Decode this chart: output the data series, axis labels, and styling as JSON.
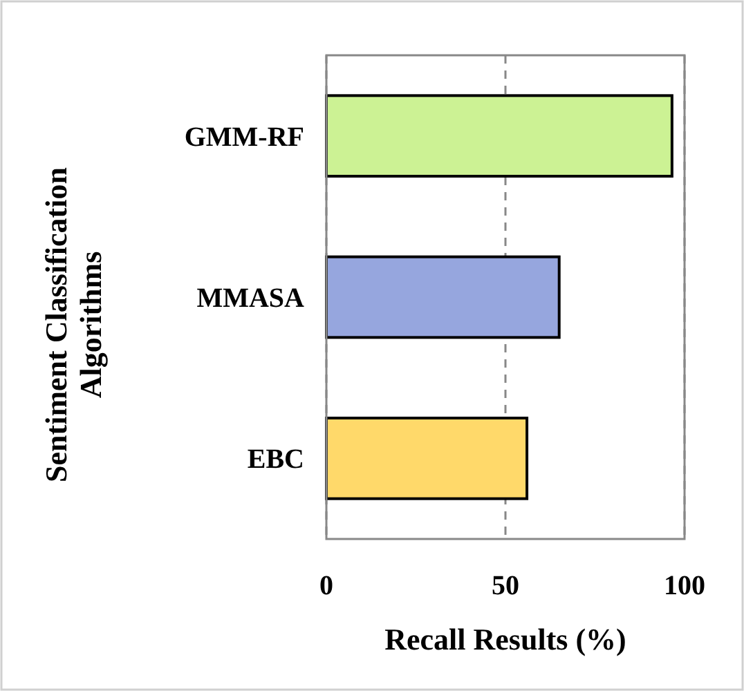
{
  "chart_data": {
    "type": "bar",
    "orientation": "horizontal",
    "xlabel": "Recall Results (%)",
    "ylabel": "Sentiment Classification Algorithms",
    "categories": [
      "GMM-RF",
      "MMASA",
      "EBC"
    ],
    "values": [
      96.5,
      65,
      56
    ],
    "colors": [
      "#ccf294",
      "#96a6de",
      "#ffd96a"
    ],
    "xlim": [
      0,
      100
    ],
    "xticks": [
      0,
      50,
      100
    ],
    "grid": "x"
  }
}
